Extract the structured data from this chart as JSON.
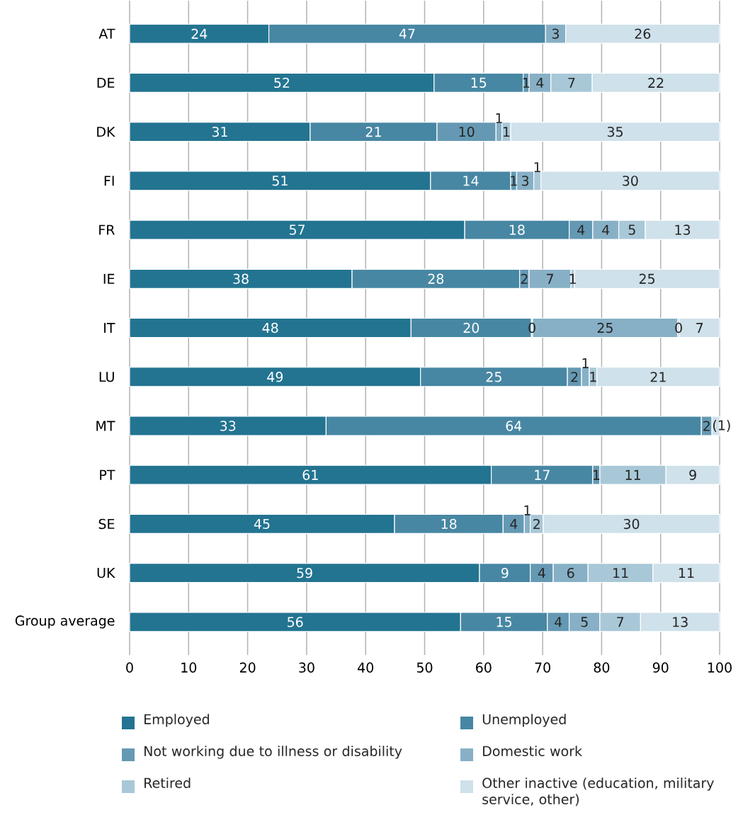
{
  "chart_data": {
    "type": "bar",
    "orientation": "horizontal",
    "stacked": true,
    "categories": [
      "AT",
      "DE",
      "DK",
      "FI",
      "FR",
      "IE",
      "IT",
      "LU",
      "MT",
      "PT",
      "SE",
      "UK",
      "Group average"
    ],
    "xlim": [
      0,
      100
    ],
    "xticks": [
      0,
      10,
      20,
      30,
      40,
      50,
      60,
      70,
      80,
      90,
      100
    ],
    "grid": "x",
    "legend": "bottom",
    "series": [
      {
        "name": "Employed",
        "color": "#237491",
        "values": [
          23.6,
          51.6,
          30.6,
          51.0,
          56.8,
          37.7,
          47.7,
          49.3,
          33.3,
          61.3,
          44.9,
          59.3,
          56.1
        ],
        "value_labels": [
          "24",
          "52",
          "31",
          "51",
          "57",
          "38",
          "48",
          "49",
          "33",
          "61",
          "45",
          "59",
          "56"
        ]
      },
      {
        "name": "Unemployed",
        "color": "#4787a3",
        "values": [
          46.9,
          15.1,
          21.5,
          13.6,
          17.7,
          28.4,
          20.4,
          24.9,
          63.6,
          17.2,
          18.4,
          8.6,
          14.7
        ],
        "value_labels": [
          "47",
          "15",
          "21",
          "14",
          "18",
          "28",
          "20",
          "25",
          "64",
          "17",
          "18",
          "9",
          "15"
        ]
      },
      {
        "name": "Not working due to illness or disability",
        "color": "#6599b3",
        "values": [
          null,
          1.0,
          10.0,
          1.0,
          4.0,
          1.6,
          0.2,
          2.4,
          1.8,
          1.2,
          3.6,
          3.9,
          3.7
        ],
        "value_labels": [
          null,
          "1",
          "10",
          "1",
          "4",
          "2",
          "0",
          "2",
          "2",
          "1",
          "4",
          "4",
          "4"
        ]
      },
      {
        "name": "Domestic work",
        "color": "#87b0c6",
        "values": [
          3.4,
          3.7,
          1.0,
          2.9,
          4.4,
          7.1,
          24.6,
          1.3,
          null,
          null,
          1.0,
          5.9,
          5.2
        ],
        "value_labels": [
          "3",
          "4",
          "1",
          "3",
          "4",
          "7",
          "25",
          "1",
          null,
          null,
          "1",
          "6",
          "5"
        ]
      },
      {
        "name": "Retired",
        "color": "#a8c8d8",
        "values": [
          null,
          7.0,
          1.5,
          1.2,
          4.5,
          0.6,
          0.3,
          1.3,
          null,
          11.2,
          2.2,
          11.0,
          6.9
        ],
        "value_labels": [
          null,
          "7",
          "1",
          "1",
          "5",
          "1",
          "0",
          "1",
          null,
          "11",
          "2",
          "11",
          "7"
        ]
      },
      {
        "name": "Other inactive (education, military service, other)",
        "color": "#cfe1ea",
        "values": [
          26.1,
          21.6,
          35.4,
          30.3,
          12.6,
          24.6,
          6.8,
          20.8,
          1.3,
          9.1,
          29.9,
          11.3,
          13.4
        ],
        "value_labels": [
          "26",
          "22",
          "35",
          "30",
          "13",
          "25",
          "7",
          "21",
          "(1)",
          "9",
          "30",
          "11",
          "13"
        ]
      }
    ]
  }
}
